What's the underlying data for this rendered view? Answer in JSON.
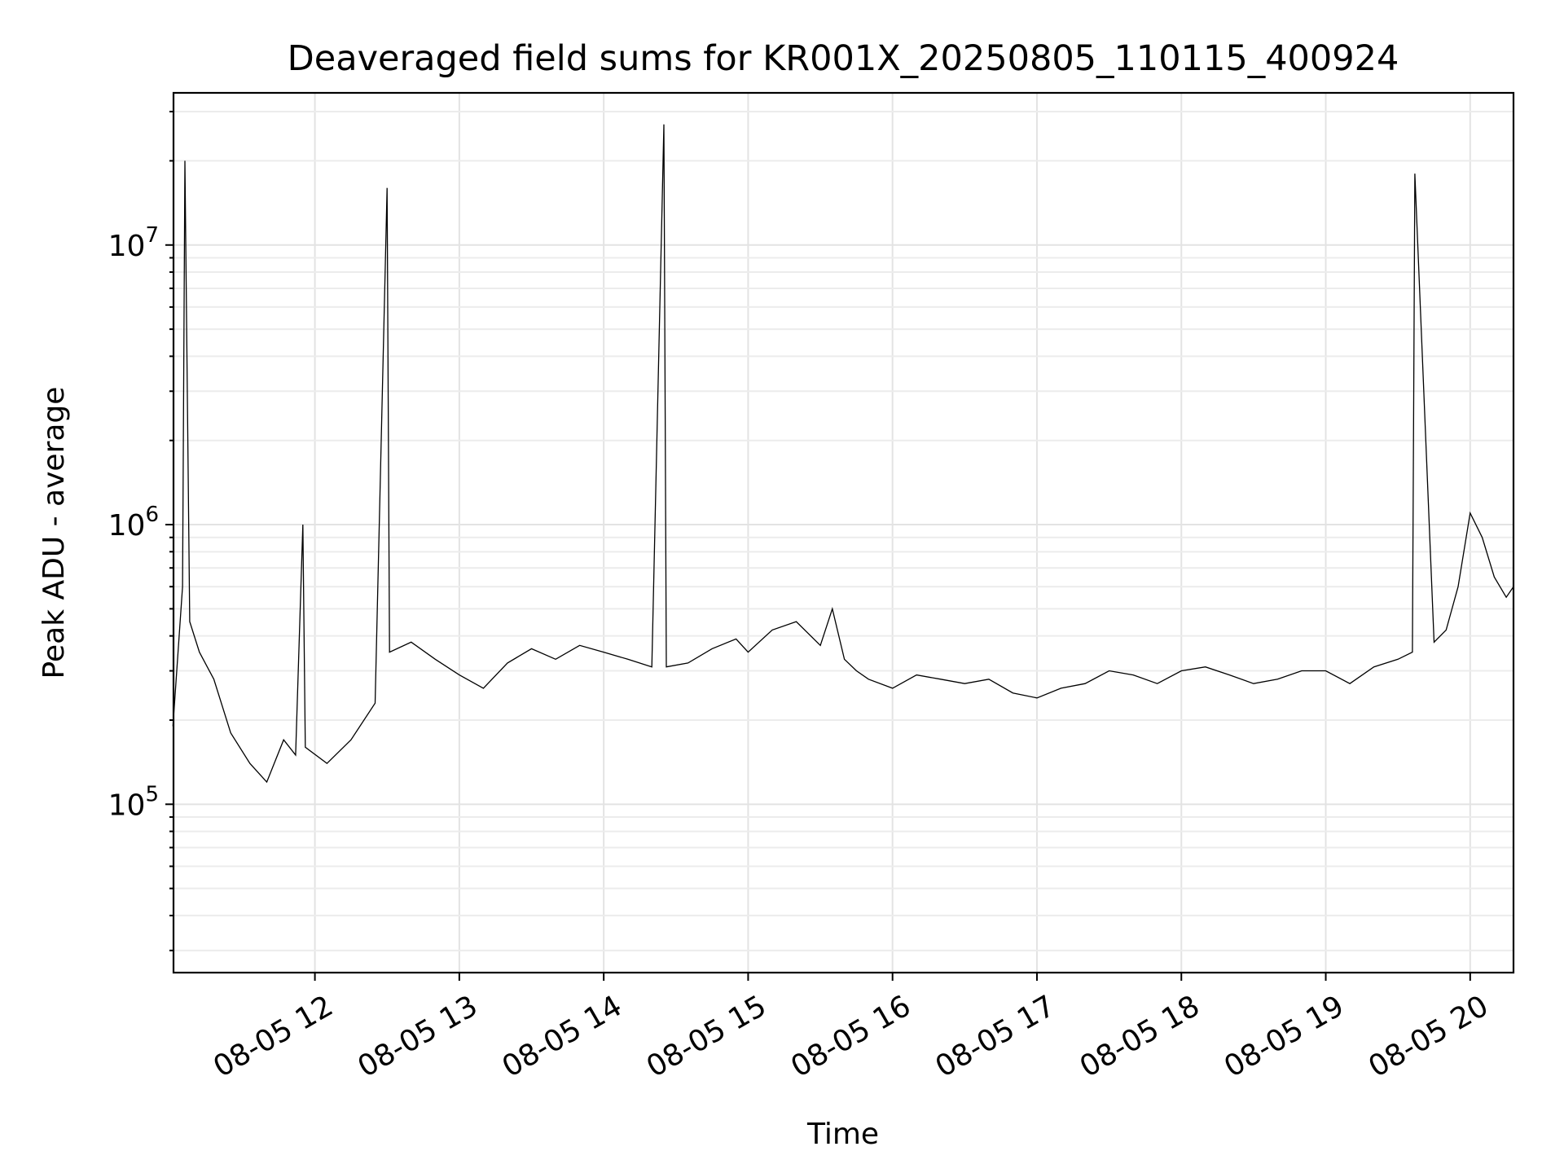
{
  "chart_data": {
    "type": "line",
    "title": "Deaveraged field sums for KR001X_20250805_110115_400924",
    "xlabel": "Time",
    "ylabel": "Peak ADU - average",
    "yscale": "log",
    "ylim": [
      25000,
      35000000
    ],
    "xlim": [
      "2025-08-05 11:01:15",
      "2025-08-05 20:18:00"
    ],
    "grid": true,
    "x_ticks": [
      {
        "t": "2025-08-05 12:00",
        "label": "08-05 12"
      },
      {
        "t": "2025-08-05 13:00",
        "label": "08-05 13"
      },
      {
        "t": "2025-08-05 14:00",
        "label": "08-05 14"
      },
      {
        "t": "2025-08-05 15:00",
        "label": "08-05 15"
      },
      {
        "t": "2025-08-05 16:00",
        "label": "08-05 16"
      },
      {
        "t": "2025-08-05 17:00",
        "label": "08-05 17"
      },
      {
        "t": "2025-08-05 18:00",
        "label": "08-05 18"
      },
      {
        "t": "2025-08-05 19:00",
        "label": "08-05 19"
      },
      {
        "t": "2025-08-05 20:00",
        "label": "08-05 20"
      }
    ],
    "y_ticks": [
      {
        "value": 100000,
        "base": "10",
        "exp": "5"
      },
      {
        "value": 1000000,
        "base": "10",
        "exp": "6"
      },
      {
        "value": 10000000,
        "base": "10",
        "exp": "7"
      }
    ],
    "series": [
      {
        "color": "#000000",
        "x": [
          "2025-08-05 11:01",
          "2025-08-05 11:05",
          "2025-08-05 11:06",
          "2025-08-05 11:08",
          "2025-08-05 11:12",
          "2025-08-05 11:18",
          "2025-08-05 11:25",
          "2025-08-05 11:33",
          "2025-08-05 11:40",
          "2025-08-05 11:47",
          "2025-08-05 11:52",
          "2025-08-05 11:55",
          "2025-08-05 11:56",
          "2025-08-05 12:05",
          "2025-08-05 12:15",
          "2025-08-05 12:25",
          "2025-08-05 12:30",
          "2025-08-05 12:31",
          "2025-08-05 12:40",
          "2025-08-05 12:50",
          "2025-08-05 13:00",
          "2025-08-05 13:10",
          "2025-08-05 13:20",
          "2025-08-05 13:30",
          "2025-08-05 13:40",
          "2025-08-05 13:50",
          "2025-08-05 14:00",
          "2025-08-05 14:10",
          "2025-08-05 14:20",
          "2025-08-05 14:25",
          "2025-08-05 14:26",
          "2025-08-05 14:35",
          "2025-08-05 14:45",
          "2025-08-05 14:55",
          "2025-08-05 15:00",
          "2025-08-05 15:10",
          "2025-08-05 15:20",
          "2025-08-05 15:30",
          "2025-08-05 15:35",
          "2025-08-05 15:40",
          "2025-08-05 15:45",
          "2025-08-05 15:50",
          "2025-08-05 16:00",
          "2025-08-05 16:10",
          "2025-08-05 16:20",
          "2025-08-05 16:30",
          "2025-08-05 16:40",
          "2025-08-05 16:50",
          "2025-08-05 17:00",
          "2025-08-05 17:10",
          "2025-08-05 17:20",
          "2025-08-05 17:30",
          "2025-08-05 17:40",
          "2025-08-05 17:50",
          "2025-08-05 18:00",
          "2025-08-05 18:10",
          "2025-08-05 18:20",
          "2025-08-05 18:30",
          "2025-08-05 18:40",
          "2025-08-05 18:50",
          "2025-08-05 19:00",
          "2025-08-05 19:10",
          "2025-08-05 19:20",
          "2025-08-05 19:30",
          "2025-08-05 19:36",
          "2025-08-05 19:37",
          "2025-08-05 19:45",
          "2025-08-05 19:50",
          "2025-08-05 19:55",
          "2025-08-05 20:00",
          "2025-08-05 20:05",
          "2025-08-05 20:10",
          "2025-08-05 20:15",
          "2025-08-05 20:18"
        ],
        "y": [
          190000,
          600000,
          20000000,
          450000,
          350000,
          280000,
          180000,
          140000,
          120000,
          170000,
          150000,
          1000000,
          160000,
          140000,
          170000,
          230000,
          16000000,
          350000,
          380000,
          330000,
          290000,
          260000,
          320000,
          360000,
          330000,
          370000,
          350000,
          330000,
          310000,
          27000000,
          310000,
          320000,
          360000,
          390000,
          350000,
          420000,
          450000,
          370000,
          500000,
          330000,
          300000,
          280000,
          260000,
          290000,
          280000,
          270000,
          280000,
          250000,
          240000,
          260000,
          270000,
          300000,
          290000,
          270000,
          300000,
          310000,
          290000,
          270000,
          280000,
          300000,
          300000,
          270000,
          310000,
          330000,
          350000,
          18000000,
          380000,
          420000,
          600000,
          1100000,
          900000,
          650000,
          550000,
          600000
        ]
      }
    ]
  }
}
